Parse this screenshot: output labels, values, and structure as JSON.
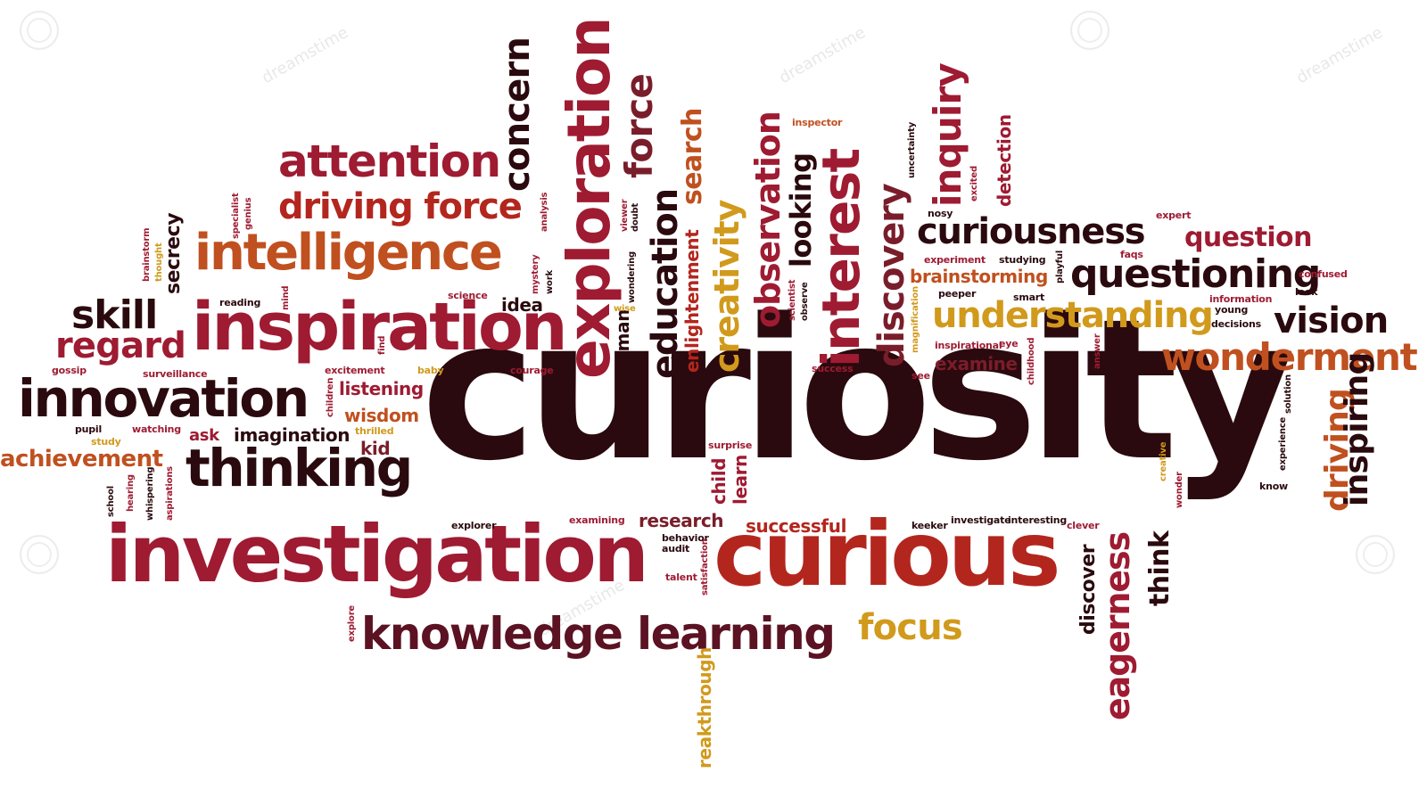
{
  "cloud": {
    "main": "curiosity",
    "words": {
      "curious": "curious",
      "investigation": "investigation",
      "inspiration": "inspiration",
      "innovation": "innovation",
      "intelligence": "intelligence",
      "thinking": "thinking",
      "attention": "attention",
      "driving_force": "driving force",
      "skill": "skill",
      "regard": "regard",
      "knowledge": "knowledge",
      "learning": "learning",
      "focus": "focus",
      "exploration": "exploration",
      "concern": "concern",
      "force": "force",
      "education": "education",
      "search": "search",
      "creativity": "creativity",
      "observation": "observation",
      "looking": "looking",
      "interest": "interest",
      "discovery": "discovery",
      "inquiry": "inquiry",
      "detection": "detection",
      "curiousness": "curiousness",
      "question": "question",
      "questioning": "questioning",
      "understanding": "understanding",
      "brainstorming": "brainstorming",
      "vision": "vision",
      "wonderment": "wonderment",
      "examine": "examine",
      "driving": "driving",
      "inspiring": "inspiring",
      "eagerness": "eagerness",
      "think": "think",
      "discover": "discover",
      "research": "research",
      "successful": "successful",
      "achievement": "achievement",
      "imagination": "imagination",
      "listening": "listening",
      "wisdom": "wisdom",
      "kid": "kid",
      "ask": "ask",
      "idea": "idea",
      "secrecy": "secrecy",
      "enlightenment": "enlightenment",
      "human": "human",
      "breakthrough": "reakthrough",
      "child": "child",
      "learn": "learn",
      "brainstorm": "brainstorm",
      "thought": "thought",
      "specialist": "specialist",
      "genius": "genius",
      "analysis": "analysis",
      "mystery": "mystery",
      "work": "work",
      "viewer": "viewer",
      "doubt": "doubt",
      "wondering": "wondering",
      "wise": "wise",
      "reading": "reading",
      "mind": "mind",
      "science": "science",
      "find": "find",
      "excitement": "excitement",
      "baby": "baby",
      "courage": "courage",
      "gossip": "gossip",
      "surveillance": "surveillance",
      "children": "children",
      "thrilled": "thrilled",
      "pupil": "pupil",
      "watching": "watching",
      "study": "study",
      "school": "school",
      "hearing": "hearing",
      "whispering": "whispering",
      "aspirations": "aspirations",
      "explorer": "explorer",
      "examining": "examining",
      "behavior": "behavior",
      "audit": "audit",
      "talent": "talent",
      "satisfaction": "satisfaction",
      "surprise": "surprise",
      "explore": "explore",
      "keeker": "keeker",
      "investigate": "investigate",
      "interesting": "interesting",
      "clever": "clever",
      "inspector": "inspector",
      "uncertainty": "uncertainty",
      "excited": "excited",
      "nosy": "nosy",
      "expert": "expert",
      "faqs": "faqs",
      "experiment": "experiment",
      "studying": "studying",
      "playful": "playful",
      "confused": "confused",
      "look": "look",
      "peeper": "peeper",
      "smart": "smart",
      "information": "information",
      "young": "young",
      "decisions": "decisions",
      "scientist": "scientist",
      "observe": "observe",
      "magnification": "magnification",
      "inspirational": "inspirational",
      "eye": "eye",
      "childhood": "childhood",
      "answer": "answer",
      "success": "success",
      "see": "see",
      "solution": "solution",
      "experience": "experience",
      "know": "know",
      "wonder": "wonder",
      "creative": "creative"
    },
    "watermark": "dreamstime"
  }
}
